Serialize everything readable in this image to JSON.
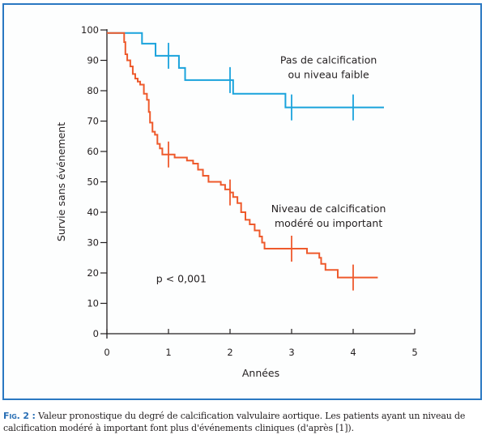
{
  "figure": {
    "label": "Fig. 2",
    "label_separator": " :",
    "caption": " Valeur pronostique du degré de calcification valvulaire aortique. Les patients ayant un niveau de calcification modéré à important font plus d'événements cliniques (d'après [1])."
  },
  "colors": {
    "frame": "#2a78c2",
    "series_low": "#1aa3dc",
    "series_high": "#ee5a2c",
    "axis": "#231f20",
    "caption_label": "#2a6fb5"
  },
  "chart_data": {
    "type": "line",
    "subtype": "kaplan-meier step curve",
    "title": "",
    "xlabel": "Années",
    "ylabel": "Survie sans événement",
    "xlim": [
      0,
      5
    ],
    "ylim": [
      0,
      100
    ],
    "xticks": [
      0,
      1,
      2,
      3,
      4,
      5
    ],
    "xtick_labels": [
      "0",
      "1",
      "2",
      "3",
      "4",
      "5"
    ],
    "yticks": [
      0,
      10,
      20,
      30,
      40,
      50,
      60,
      70,
      80,
      90,
      100
    ],
    "ytick_labels": [
      "0",
      "10",
      "20",
      "30",
      "40",
      "50",
      "60",
      "70",
      "80",
      "90",
      "100"
    ],
    "grid": false,
    "legend": "none (inline labels)",
    "annotations": [
      {
        "text": "p < 0,001",
        "x": 0.8,
        "y": 17
      }
    ],
    "series": [
      {
        "name": "Pas de calcification ou niveau faible",
        "label_lines": [
          "Pas de calcification",
          "ou niveau faible"
        ],
        "label_anchor": {
          "x": 3.6,
          "y": 89
        },
        "color_key": "series_low",
        "steps": [
          [
            0,
            99
          ],
          [
            0.57,
            95.5
          ],
          [
            0.79,
            91.5
          ],
          [
            1.17,
            87.5
          ],
          [
            1.27,
            83.5
          ],
          [
            2.05,
            79
          ],
          [
            2.9,
            74.5
          ],
          [
            4.5,
            74.5
          ]
        ],
        "censor_marks": [
          {
            "x": 1.0,
            "y": 91.5
          },
          {
            "x": 2.0,
            "y": 83.5
          },
          {
            "x": 3.0,
            "y": 74.5
          },
          {
            "x": 4.0,
            "y": 74.5
          }
        ]
      },
      {
        "name": "Niveau de calcification modéré ou important",
        "label_lines": [
          "Niveau de calcification",
          "modéré ou important"
        ],
        "label_anchor": {
          "x": 3.6,
          "y": 40
        },
        "color_key": "series_high",
        "steps": [
          [
            0,
            99
          ],
          [
            0.28,
            96
          ],
          [
            0.3,
            92
          ],
          [
            0.33,
            90
          ],
          [
            0.38,
            88
          ],
          [
            0.42,
            85.5
          ],
          [
            0.46,
            84
          ],
          [
            0.5,
            83
          ],
          [
            0.54,
            82
          ],
          [
            0.6,
            79
          ],
          [
            0.65,
            77
          ],
          [
            0.68,
            73
          ],
          [
            0.7,
            69.5
          ],
          [
            0.74,
            66.5
          ],
          [
            0.78,
            65.5
          ],
          [
            0.82,
            62.5
          ],
          [
            0.86,
            61
          ],
          [
            0.9,
            59
          ],
          [
            1.1,
            58
          ],
          [
            1.3,
            57
          ],
          [
            1.4,
            56
          ],
          [
            1.48,
            54
          ],
          [
            1.56,
            52
          ],
          [
            1.65,
            50
          ],
          [
            1.85,
            49
          ],
          [
            1.92,
            47.5
          ],
          [
            2.0,
            46.5
          ],
          [
            2.05,
            45
          ],
          [
            2.12,
            43
          ],
          [
            2.18,
            40
          ],
          [
            2.25,
            37.5
          ],
          [
            2.32,
            36
          ],
          [
            2.4,
            34
          ],
          [
            2.48,
            32
          ],
          [
            2.52,
            30
          ],
          [
            2.56,
            28
          ],
          [
            3.25,
            26.5
          ],
          [
            3.45,
            25
          ],
          [
            3.48,
            23
          ],
          [
            3.55,
            21
          ],
          [
            3.75,
            18.5
          ],
          [
            4.4,
            18.5
          ]
        ],
        "censor_marks": [
          {
            "x": 1.0,
            "y": 59
          },
          {
            "x": 2.0,
            "y": 46.5
          },
          {
            "x": 3.0,
            "y": 28
          },
          {
            "x": 4.0,
            "y": 18.5
          }
        ]
      }
    ]
  }
}
